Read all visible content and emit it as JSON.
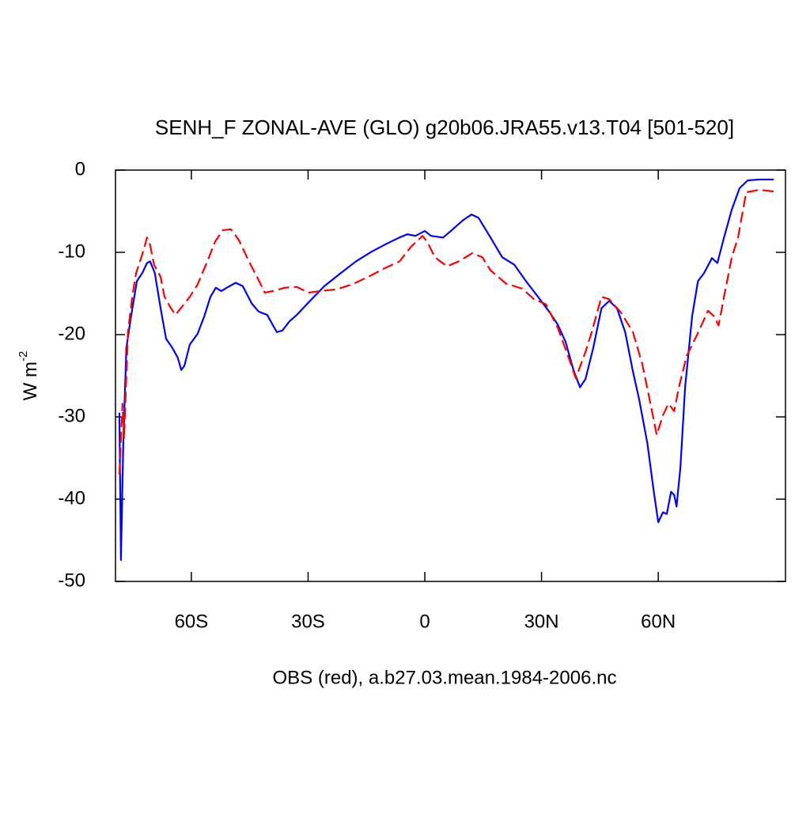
{
  "chart_data": {
    "type": "line",
    "title": "SENH_F ZONAL-AVE (GLO) g20b06.JRA55.v13.T04 [501-520]",
    "x_label": "OBS (red), a.b27.03.mean.1984-2006.nc",
    "y_label": {
      "base": "W m",
      "superscript": "-2"
    },
    "xlim": [
      -79.5,
      92.7
    ],
    "ylim": [
      -50,
      0
    ],
    "xticks": [
      {
        "value": -60,
        "label": "60S"
      },
      {
        "value": -30,
        "label": "30S"
      },
      0,
      {
        "value": 30,
        "label": "30N"
      },
      {
        "value": 60,
        "label": "60N"
      }
    ],
    "yticks": [
      0,
      -10,
      -20,
      -30,
      -40,
      -50
    ],
    "grid": false,
    "series": [
      {
        "color": "#0000ff",
        "dash": false,
        "x": [
          -78.5,
          -78.1,
          -77.5,
          -76.7,
          -75.5,
          -74.0,
          -72.6,
          -71.4,
          -70.6,
          -69.4,
          -67.9,
          -66.5,
          -64.9,
          -63.5,
          -62.6,
          -61.8,
          -60.4,
          -58.4,
          -56.7,
          -55.1,
          -53.7,
          -52.3,
          -50.9,
          -48.6,
          -46.8,
          -44.5,
          -42.7,
          -40.5,
          -39.0,
          -38.0,
          -36.6,
          -34.8,
          -32.9,
          -29.9,
          -25.8,
          -21.8,
          -17.7,
          -13.6,
          -9.6,
          -6.5,
          -4.5,
          -2.4,
          0,
          1.6,
          4.7,
          6.7,
          9.8,
          12.0,
          13.8,
          16.9,
          19.9,
          23.0,
          26.0,
          29.1,
          32.1,
          34.2,
          36.2,
          38.2,
          39.9,
          41.3,
          43.3,
          45.4,
          47.4,
          49.4,
          51.5,
          53.5,
          55.1,
          57.2,
          58.8,
          60.0,
          61.2,
          62.2,
          63.3,
          64.1,
          64.7,
          65.7,
          66.9,
          68.7,
          70.2,
          71.8,
          73.8,
          75.2,
          76.9,
          78.9,
          80.9,
          83.0,
          86.0,
          89.7
        ],
        "values": [
          -29.5,
          -47.4,
          -33.2,
          -21.6,
          -17.8,
          -13.5,
          -12.5,
          -11.3,
          -11.1,
          -12.5,
          -16.8,
          -20.5,
          -21.6,
          -22.8,
          -24.3,
          -23.8,
          -21.2,
          -19.9,
          -17.8,
          -15.4,
          -14.3,
          -14.7,
          -14.3,
          -13.7,
          -14.1,
          -16.2,
          -17.2,
          -17.6,
          -18.9,
          -19.7,
          -19.5,
          -18.4,
          -17.6,
          -16.1,
          -14.1,
          -12.6,
          -11.1,
          -9.9,
          -8.9,
          -8.2,
          -7.8,
          -8.0,
          -7.4,
          -8.0,
          -8.2,
          -7.4,
          -6.1,
          -5.4,
          -5.8,
          -8.2,
          -10.6,
          -11.5,
          -13.5,
          -15.4,
          -17.3,
          -18.8,
          -20.9,
          -24.3,
          -26.4,
          -25.4,
          -21.6,
          -16.8,
          -15.9,
          -16.8,
          -19.7,
          -24.5,
          -27.9,
          -33.2,
          -38.9,
          -42.8,
          -41.6,
          -41.8,
          -39.1,
          -39.5,
          -40.9,
          -36.1,
          -26.4,
          -17.8,
          -13.5,
          -12.5,
          -10.7,
          -11.3,
          -8.2,
          -4.8,
          -2.2,
          -1.25,
          -1.15,
          -1.15
        ]
      },
      {
        "color": "#ff0000",
        "dash": true,
        "x": [
          -78.5,
          -77.7,
          -77.3,
          -76.3,
          -75.2,
          -74.2,
          -73.2,
          -72.2,
          -71.4,
          -70.6,
          -69.6,
          -67.9,
          -66.9,
          -65.5,
          -64.1,
          -62.4,
          -60.4,
          -58.4,
          -55.9,
          -53.9,
          -51.9,
          -49.8,
          -47.8,
          -45.2,
          -43.1,
          -41.1,
          -39.0,
          -36.0,
          -32.9,
          -29.9,
          -26.8,
          -22.8,
          -18.7,
          -14.6,
          -10.6,
          -6.5,
          -3.5,
          -0.6,
          0.6,
          2.6,
          5.7,
          8.7,
          12.2,
          14.8,
          16.9,
          20.9,
          25.0,
          28.1,
          31.1,
          34.2,
          37.2,
          38.8,
          41.3,
          42.9,
          45.4,
          47.4,
          50.4,
          53.5,
          55.9,
          58.0,
          59.6,
          61.2,
          62.6,
          64.1,
          65.3,
          67.3,
          69.8,
          72.8,
          74.4,
          75.5,
          76.9,
          78.9,
          80.5,
          82.6,
          86.0,
          89.7
        ],
        "values": [
          -37,
          -28.4,
          -32.7,
          -19.7,
          -15.4,
          -12.5,
          -11.1,
          -9.6,
          -8.2,
          -9.1,
          -11.5,
          -13.0,
          -15.4,
          -16.6,
          -17.6,
          -16.6,
          -15.4,
          -13.9,
          -11.1,
          -8.7,
          -7.3,
          -7.2,
          -8.5,
          -11.1,
          -13.0,
          -14.9,
          -14.7,
          -14.3,
          -14.2,
          -14.9,
          -14.7,
          -14.5,
          -13.9,
          -13.0,
          -12.0,
          -11.1,
          -9.3,
          -8.0,
          -8.7,
          -10.6,
          -11.7,
          -11.1,
          -10.1,
          -10.6,
          -12.2,
          -13.8,
          -14.4,
          -15.7,
          -16.3,
          -19.2,
          -23.1,
          -25.3,
          -22.1,
          -19.7,
          -15.4,
          -15.7,
          -17.3,
          -19.7,
          -23.6,
          -28.4,
          -32.2,
          -29.8,
          -28.4,
          -29.3,
          -26.4,
          -22.6,
          -20.2,
          -17.1,
          -17.8,
          -18.9,
          -15.4,
          -10.6,
          -8.2,
          -2.7,
          -2.4,
          -2.6
        ]
      }
    ]
  }
}
